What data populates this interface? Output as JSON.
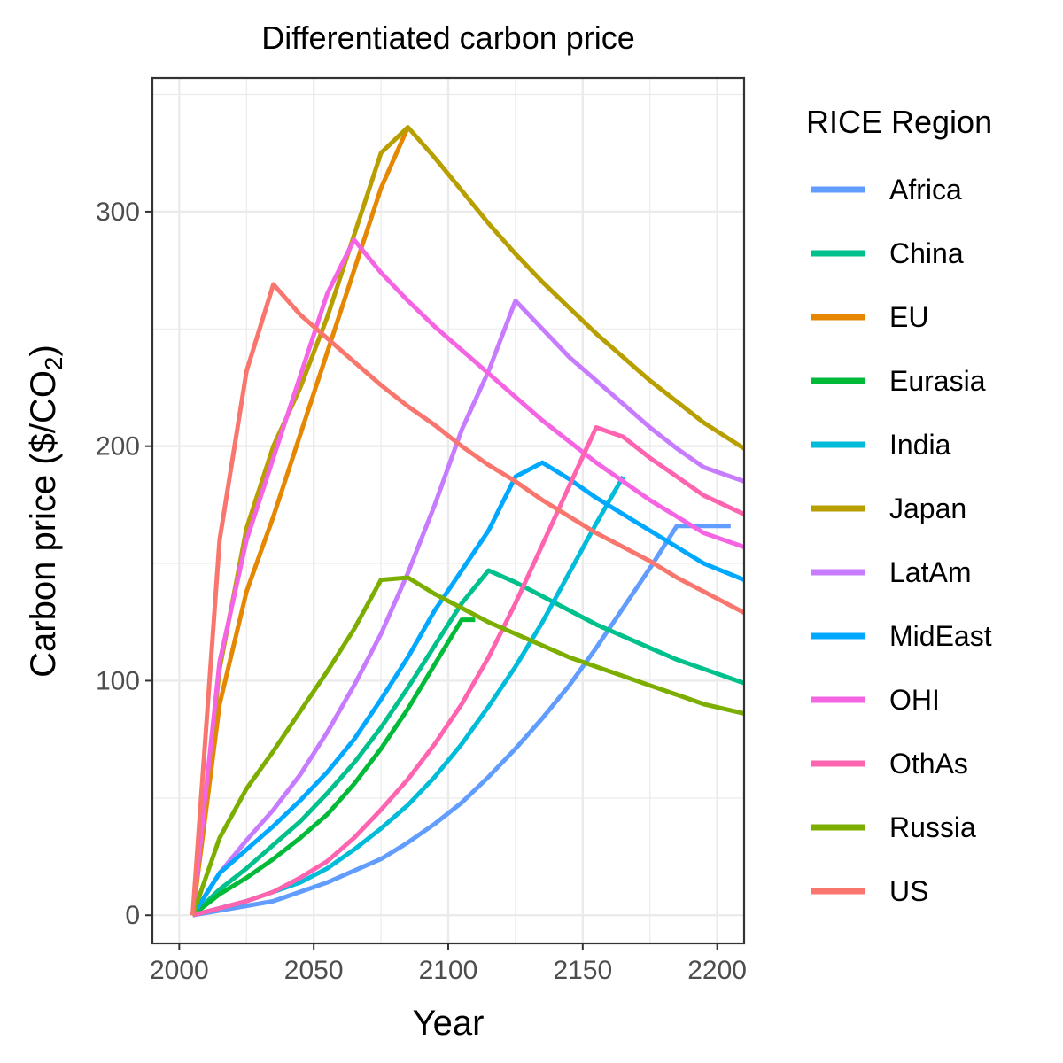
{
  "chart_data": {
    "type": "line",
    "title": "Differentiated carbon price",
    "xlabel": "Year",
    "ylabel": "Carbon price ($/CO2)",
    "ylabel_main": "Carbon price ($/CO",
    "ylabel_sub": "2",
    "ylabel_end": ")",
    "xlim": [
      1990,
      2210
    ],
    "ylim": [
      -12,
      357
    ],
    "xticks": [
      2000,
      2050,
      2100,
      2150,
      2200
    ],
    "yticks": [
      0,
      100,
      200,
      300
    ],
    "xtick_labels": [
      "2000",
      "2050",
      "2100",
      "2150",
      "2200"
    ],
    "ytick_labels": [
      "0",
      "100",
      "200",
      "300"
    ],
    "grid": true,
    "legend_title": "RICE Region",
    "legend_position": "right",
    "series": [
      {
        "name": "Africa",
        "color": "#619CFF",
        "x": [
          2005,
          2015,
          2025,
          2035,
          2045,
          2055,
          2065,
          2075,
          2085,
          2095,
          2105,
          2115,
          2125,
          2135,
          2145,
          2155,
          2165,
          2175,
          2185,
          2195,
          2205
        ],
        "y": [
          0,
          2,
          4,
          6,
          10,
          14,
          19,
          24,
          31,
          39,
          48,
          59,
          71,
          84,
          98,
          114,
          131,
          148,
          166,
          166,
          166
        ]
      },
      {
        "name": "China",
        "color": "#00C08B",
        "x": [
          2005,
          2015,
          2025,
          2035,
          2045,
          2055,
          2065,
          2075,
          2085,
          2095,
          2105,
          2115,
          2125,
          2135,
          2145,
          2155,
          2165,
          2175,
          2185,
          2195,
          2210
        ],
        "y": [
          0,
          11,
          20,
          30,
          40,
          52,
          65,
          80,
          97,
          115,
          133,
          147,
          142,
          136,
          130,
          124,
          119,
          114,
          109,
          105,
          99
        ]
      },
      {
        "name": "EU",
        "color": "#E58700",
        "x": [
          2005,
          2015,
          2025,
          2035,
          2045,
          2055,
          2065,
          2075,
          2085
        ],
        "y": [
          0,
          90,
          138,
          170,
          205,
          240,
          275,
          310,
          336
        ]
      },
      {
        "name": "Eurasia",
        "color": "#00BA38",
        "x": [
          2005,
          2015,
          2025,
          2035,
          2045,
          2055,
          2065,
          2075,
          2085,
          2095,
          2105,
          2110
        ],
        "y": [
          0,
          9,
          16,
          24,
          33,
          43,
          56,
          71,
          88,
          107,
          126,
          126
        ]
      },
      {
        "name": "India",
        "color": "#00BCD8",
        "x": [
          2005,
          2015,
          2025,
          2035,
          2045,
          2055,
          2065,
          2075,
          2085,
          2095,
          2105,
          2115,
          2125,
          2135,
          2145,
          2155,
          2165
        ],
        "y": [
          0,
          3,
          6,
          10,
          14,
          20,
          28,
          37,
          47,
          59,
          73,
          89,
          106,
          125,
          146,
          167,
          187
        ]
      },
      {
        "name": "Japan",
        "color": "#B79F00",
        "x": [
          2005,
          2015,
          2025,
          2035,
          2045,
          2055,
          2065,
          2075,
          2085,
          2095,
          2105,
          2115,
          2125,
          2135,
          2145,
          2155,
          2165,
          2175,
          2185,
          2195,
          2210
        ],
        "y": [
          0,
          105,
          165,
          200,
          225,
          255,
          290,
          325,
          336,
          323,
          309,
          295,
          282,
          270,
          259,
          248,
          238,
          228,
          219,
          210,
          199
        ]
      },
      {
        "name": "LatAm",
        "color": "#C77CFF",
        "x": [
          2005,
          2015,
          2025,
          2035,
          2045,
          2055,
          2065,
          2075,
          2085,
          2095,
          2105,
          2115,
          2125,
          2135,
          2145,
          2155,
          2165,
          2175,
          2185,
          2195,
          2210
        ],
        "y": [
          0,
          18,
          32,
          45,
          60,
          78,
          98,
          120,
          146,
          175,
          207,
          232,
          262,
          250,
          238,
          228,
          218,
          208,
          199,
          191,
          185
        ]
      },
      {
        "name": "MidEast",
        "color": "#00A9FF",
        "x": [
          2005,
          2015,
          2025,
          2035,
          2045,
          2055,
          2065,
          2075,
          2085,
          2095,
          2105,
          2115,
          2125,
          2135,
          2145,
          2155,
          2165,
          2175,
          2185,
          2195,
          2210
        ],
        "y": [
          0,
          18,
          28,
          38,
          49,
          61,
          75,
          92,
          110,
          130,
          147,
          164,
          187,
          193,
          186,
          178,
          171,
          164,
          157,
          150,
          143
        ]
      },
      {
        "name": "OHI",
        "color": "#F564E3",
        "x": [
          2005,
          2015,
          2025,
          2035,
          2045,
          2055,
          2065,
          2075,
          2085,
          2095,
          2105,
          2115,
          2125,
          2135,
          2145,
          2155,
          2165,
          2175,
          2185,
          2195,
          2210
        ],
        "y": [
          0,
          108,
          160,
          195,
          230,
          265,
          288,
          274,
          262,
          251,
          241,
          231,
          221,
          211,
          202,
          193,
          185,
          177,
          170,
          163,
          157
        ]
      },
      {
        "name": "OthAs",
        "color": "#FF64B0",
        "x": [
          2005,
          2015,
          2025,
          2035,
          2045,
          2055,
          2065,
          2075,
          2085,
          2095,
          2105,
          2115,
          2125,
          2135,
          2145,
          2155,
          2165,
          2175,
          2185,
          2195,
          2210
        ],
        "y": [
          0,
          3,
          6,
          10,
          16,
          23,
          33,
          45,
          58,
          73,
          90,
          110,
          133,
          158,
          183,
          208,
          204,
          195,
          187,
          179,
          171
        ]
      },
      {
        "name": "Russia",
        "color": "#7CAE00",
        "x": [
          2005,
          2015,
          2025,
          2035,
          2045,
          2055,
          2065,
          2075,
          2085,
          2095,
          2105,
          2115,
          2125,
          2135,
          2145,
          2155,
          2165,
          2175,
          2185,
          2195,
          2210
        ],
        "y": [
          0,
          33,
          54,
          70,
          87,
          104,
          122,
          143,
          144,
          137,
          131,
          125,
          120,
          115,
          110,
          106,
          102,
          98,
          94,
          90,
          86
        ]
      },
      {
        "name": "US",
        "color": "#F8766D",
        "x": [
          2005,
          2015,
          2025,
          2035,
          2045,
          2055,
          2065,
          2075,
          2085,
          2095,
          2105,
          2115,
          2125,
          2135,
          2145,
          2155,
          2165,
          2175,
          2185,
          2195,
          2210
        ],
        "y": [
          0,
          160,
          232,
          269,
          256,
          246,
          236,
          226,
          217,
          209,
          200,
          192,
          185,
          177,
          170,
          163,
          157,
          151,
          144,
          138,
          129
        ]
      }
    ]
  }
}
